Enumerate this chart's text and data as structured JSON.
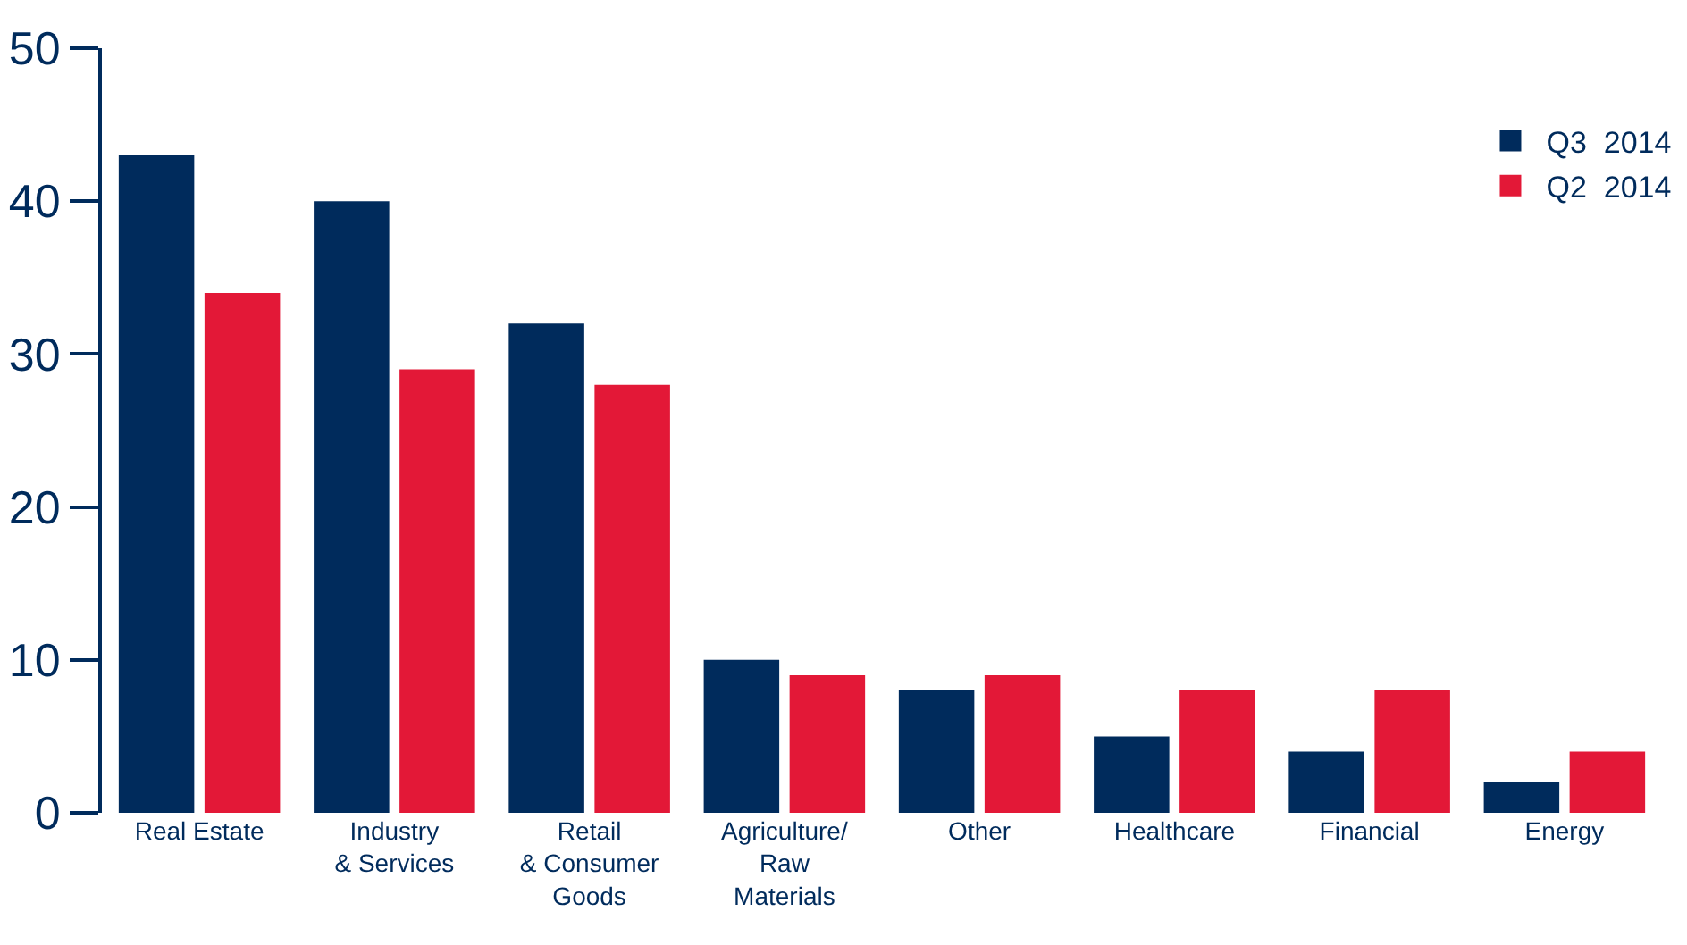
{
  "chart_data": {
    "type": "bar",
    "categories": [
      "Real Estate",
      "Industry\n& Services",
      "Retail\n& Consumer\nGoods",
      "Agriculture/\nRaw\nMaterials",
      "Other",
      "Healthcare",
      "Financial",
      "Energy"
    ],
    "series": [
      {
        "name": "Q3  2014",
        "color": "#002b5c",
        "values": [
          43,
          40,
          32,
          10,
          8,
          5,
          4,
          2
        ]
      },
      {
        "name": "Q2  2014",
        "color": "#e31837",
        "values": [
          34,
          29,
          28,
          9,
          9,
          8,
          8,
          4
        ]
      }
    ],
    "ylim": [
      0,
      50
    ],
    "yticks": [
      0,
      10,
      20,
      30,
      40,
      50
    ],
    "legend": "top right"
  }
}
